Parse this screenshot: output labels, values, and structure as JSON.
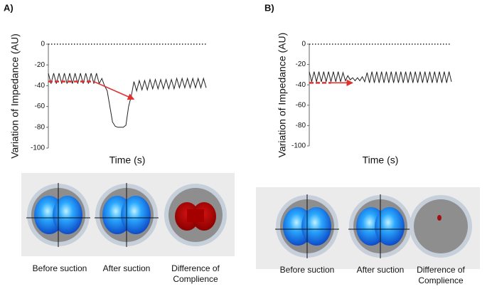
{
  "chart_data": [
    {
      "type": "line",
      "panel_label": "A)",
      "y_label": "Variation of Impedance  (AU)",
      "x_label": "Time  (s)",
      "ylim": [
        -100,
        0
      ],
      "yticks": [
        0,
        -20,
        -40,
        -60,
        -80,
        -100
      ],
      "zero_line": "dotted",
      "xlim": [
        0,
        59
      ],
      "series": [
        {
          "color": "#222222",
          "values": [
            -28,
            -38,
            -28,
            -38,
            -28,
            -38,
            -28,
            -38,
            -28,
            -38,
            -28,
            -38,
            -28,
            -38,
            -28,
            -38,
            -28,
            -38,
            -28,
            -38,
            -33,
            -40,
            -45,
            -60,
            -75,
            -79,
            -80,
            -80,
            -80,
            -78,
            -60,
            -50,
            -36,
            -45,
            -35,
            -44,
            -35,
            -44,
            -34,
            -43,
            -34,
            -43,
            -34,
            -43,
            -34,
            -43,
            -34,
            -43,
            -33,
            -42,
            -33,
            -42,
            -33,
            -42,
            -33,
            -42,
            -33,
            -42,
            -33,
            -42
          ]
        },
        {
          "color": "#e03030",
          "style": "dashed-arrow",
          "x": [
            0,
            17,
            32
          ],
          "values": [
            -36,
            -36,
            -53
          ]
        }
      ],
      "images": [
        "Before suction",
        "After suction",
        "Difference of Complience"
      ]
    },
    {
      "type": "line",
      "panel_label": "B)",
      "y_label": "Variation of Impedance  (AU)",
      "x_label": "Time  (s)",
      "ylim": [
        -100,
        0
      ],
      "yticks": [
        0,
        -20,
        -40,
        -60,
        -80,
        -100
      ],
      "zero_line": "dotted",
      "xlim": [
        0,
        59
      ],
      "series": [
        {
          "color": "#222222",
          "values": [
            -27,
            -37,
            -27,
            -37,
            -27,
            -37,
            -27,
            -37,
            -27,
            -37,
            -27,
            -37,
            -27,
            -37,
            -28,
            -36,
            -31,
            -35,
            -33,
            -36,
            -33,
            -36,
            -32,
            -37,
            -28,
            -38,
            -27,
            -38,
            -27,
            -38,
            -27,
            -38,
            -27,
            -38,
            -27,
            -38,
            -27,
            -38,
            -27,
            -38,
            -27,
            -38,
            -27,
            -38,
            -27,
            -38,
            -27,
            -38,
            -27,
            -38,
            -27,
            -38,
            -27,
            -38,
            -27,
            -38,
            -27,
            -38,
            -27,
            -37
          ]
        },
        {
          "color": "#e03030",
          "style": "dashed-arrow",
          "x": [
            0,
            9,
            18
          ],
          "values": [
            -38,
            -38,
            -38
          ]
        }
      ],
      "images": [
        "Before suction",
        "After suction",
        "Difference of Complience"
      ]
    }
  ]
}
